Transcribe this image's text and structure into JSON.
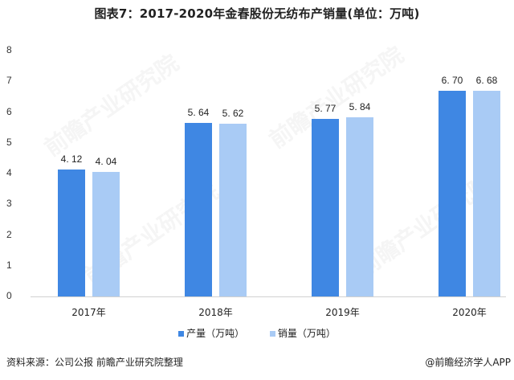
{
  "title": "图表7：2017-2020年金春股份无纺布产销量(单位：万吨)",
  "chart_data": {
    "type": "bar",
    "title": "图表7：2017-2020年金春股份无纺布产销量(单位：万吨)",
    "categories": [
      "2017年",
      "2018年",
      "2019年",
      "2020年"
    ],
    "series": [
      {
        "name": "产量（万吨）",
        "values": [
          4.12,
          5.64,
          5.77,
          6.7
        ],
        "color": "#3f87e3"
      },
      {
        "name": "销量（万吨）",
        "values": [
          4.04,
          5.62,
          5.84,
          6.68
        ],
        "color": "#a9cbf5"
      }
    ],
    "value_labels": {
      "series0": [
        "4. 12",
        "5. 64",
        "5. 77",
        "6. 70"
      ],
      "series1": [
        "4. 04",
        "5. 62",
        "5. 84",
        "6. 68"
      ]
    },
    "xlabel": "",
    "ylabel": "",
    "ylim": [
      0,
      8
    ],
    "yticks": [
      "0",
      "1",
      "2",
      "3",
      "4",
      "5",
      "6",
      "7",
      "8"
    ],
    "grid": false,
    "legend_position": "bottom"
  },
  "legend": {
    "items": [
      {
        "label": "产量（万吨）",
        "color": "#3f87e3"
      },
      {
        "label": "销量（万吨）",
        "color": "#a9cbf5"
      }
    ]
  },
  "footer": {
    "source": "资料来源：公司公报 前瞻产业研究院整理",
    "credit": "@前瞻经济学人APP"
  },
  "watermark": "前瞻产业研究院"
}
